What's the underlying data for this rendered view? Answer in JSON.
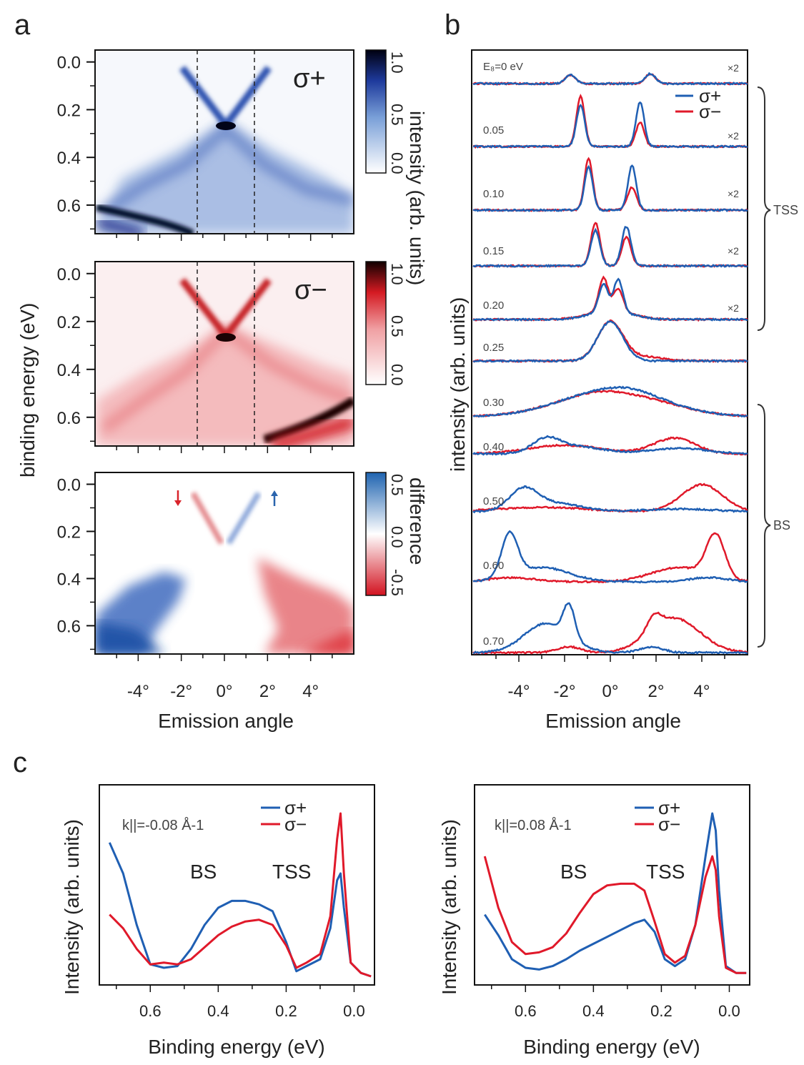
{
  "panel_letters": {
    "a": "a",
    "b": "b",
    "c": "c"
  },
  "panel_a": {
    "ylabel": "binding energy (eV)",
    "xlabel": "Emission angle",
    "y_ticks": [
      "0.0",
      "0.2",
      "0.4",
      "0.6"
    ],
    "x_ticks": [
      "-4°",
      "-2°",
      "0°",
      "2°",
      "4°"
    ],
    "maps": [
      {
        "tag": "σ+",
        "color": "#1f3a9e",
        "colorbar_label": "intensity (arb. units)",
        "colorbar_ticks": [
          "1.0",
          "0.5",
          "0.0"
        ]
      },
      {
        "tag": "σ−",
        "color": "#d41a22",
        "colorbar_ticks": [
          "1.0",
          "0.5",
          "0.0"
        ]
      },
      {
        "colorbar_label": "difference",
        "colorbar_ticks": [
          "0.5",
          "0.0",
          "-0.5"
        ],
        "arrow_down_color": "#d9242b",
        "arrow_up_color": "#2a64ad"
      }
    ]
  },
  "panel_b": {
    "ylabel": "intensity (arb. units)",
    "xlabel": "Emission angle",
    "x_ticks": [
      "-4°",
      "-2°",
      "0°",
      "2°",
      "4°"
    ],
    "legend": [
      {
        "name": "σ+",
        "color": "#1f5fb3"
      },
      {
        "name": "σ−",
        "color": "#e0192a"
      }
    ],
    "brackets": [
      "TSS",
      "BS"
    ],
    "multiplier": "×2",
    "energy_labels": [
      "E₈=0 eV",
      "0.05",
      "0.10",
      "0.15",
      "0.20",
      "0.25",
      "0.30",
      "0.40",
      "0.50",
      "0.60",
      "0.70"
    ]
  },
  "panel_c": [
    {
      "ylabel": "Intensity (arb. units)",
      "xlabel": "Binding energy (eV)",
      "k_label": "k||=-0.08 Å-1",
      "peak_labels": [
        "BS",
        "TSS"
      ],
      "legend": [
        "σ+",
        "σ−"
      ],
      "x_ticks": [
        "0.6",
        "0.4",
        "0.2",
        "0.0"
      ]
    },
    {
      "ylabel": "Intensity (arb. units)",
      "xlabel": "Binding energy (eV)",
      "k_label": "k||=0.08 Å-1",
      "peak_labels": [
        "BS",
        "TSS"
      ],
      "legend": [
        "σ+",
        "σ−"
      ],
      "x_ticks": [
        "0.6",
        "0.4",
        "0.2",
        "0.0"
      ]
    }
  ],
  "chart_data": [
    {
      "type": "heatmap",
      "x_range_deg": [
        -6,
        6
      ],
      "y_range_eV": [
        -0.05,
        0.72
      ],
      "y_reversed": true,
      "maps": [
        "σ+ intensity",
        "σ− intensity",
        "difference"
      ],
      "colorbar_ranges": [
        [
          0,
          1
        ],
        [
          0,
          1
        ],
        [
          -0.5,
          0.5
        ]
      ],
      "dashed_lines_deg": [
        -1.25,
        1.25
      ]
    },
    {
      "type": "line",
      "x_range_deg": [
        -6,
        6
      ],
      "energies_eV": [
        0,
        0.05,
        0.1,
        0.15,
        0.2,
        0.25,
        0.3,
        0.4,
        0.5,
        0.6,
        0.7
      ],
      "scaled_x2": [
        0,
        0.05,
        0.1,
        0.15,
        0.2
      ],
      "groups": {
        "TSS": [
          0.05,
          0.2
        ],
        "BS": [
          0.3,
          0.7
        ]
      }
    },
    {
      "type": "line",
      "x_label": "Binding energy (eV)",
      "x_reversed": true,
      "xlim": [
        0.75,
        -0.06
      ],
      "series": [
        {
          "name": "σ+",
          "color": "#1f5fb3",
          "x": [
            0.72,
            0.68,
            0.64,
            0.6,
            0.56,
            0.52,
            0.48,
            0.44,
            0.4,
            0.36,
            0.32,
            0.28,
            0.24,
            0.2,
            0.17,
            0.14,
            0.1,
            0.07,
            0.05,
            0.04,
            0.03,
            0.01,
            -0.02,
            -0.05
          ],
          "y": [
            0.78,
            0.6,
            0.3,
            0.07,
            0.05,
            0.06,
            0.16,
            0.3,
            0.4,
            0.44,
            0.44,
            0.42,
            0.38,
            0.2,
            0.03,
            0.06,
            0.1,
            0.28,
            0.56,
            0.6,
            0.4,
            0.08,
            0.02,
            0.0
          ]
        },
        {
          "name": "σ−",
          "color": "#e0192a",
          "x": [
            0.72,
            0.68,
            0.64,
            0.6,
            0.56,
            0.52,
            0.48,
            0.44,
            0.4,
            0.36,
            0.32,
            0.28,
            0.24,
            0.2,
            0.17,
            0.14,
            0.1,
            0.07,
            0.05,
            0.04,
            0.03,
            0.01,
            -0.02,
            -0.05
          ],
          "y": [
            0.36,
            0.28,
            0.16,
            0.07,
            0.08,
            0.07,
            0.1,
            0.17,
            0.24,
            0.29,
            0.32,
            0.33,
            0.3,
            0.18,
            0.05,
            0.08,
            0.13,
            0.35,
            0.8,
            0.95,
            0.6,
            0.08,
            0.02,
            0.0
          ]
        }
      ]
    },
    {
      "type": "line",
      "x_label": "Binding energy (eV)",
      "x_reversed": true,
      "xlim": [
        0.75,
        -0.06
      ],
      "series": [
        {
          "name": "σ+",
          "color": "#1f5fb3",
          "x": [
            0.72,
            0.68,
            0.64,
            0.6,
            0.56,
            0.52,
            0.48,
            0.44,
            0.4,
            0.36,
            0.32,
            0.28,
            0.25,
            0.22,
            0.19,
            0.16,
            0.13,
            0.1,
            0.07,
            0.05,
            0.04,
            0.03,
            0.01,
            -0.02,
            -0.05
          ],
          "y": [
            0.36,
            0.24,
            0.1,
            0.05,
            0.04,
            0.06,
            0.1,
            0.15,
            0.19,
            0.23,
            0.27,
            0.31,
            0.33,
            0.26,
            0.1,
            0.06,
            0.1,
            0.3,
            0.7,
            0.95,
            0.85,
            0.5,
            0.06,
            0.02,
            0.02
          ]
        },
        {
          "name": "σ−",
          "color": "#e0192a",
          "x": [
            0.72,
            0.68,
            0.64,
            0.6,
            0.56,
            0.52,
            0.48,
            0.44,
            0.4,
            0.36,
            0.32,
            0.28,
            0.25,
            0.22,
            0.19,
            0.16,
            0.13,
            0.1,
            0.07,
            0.05,
            0.04,
            0.03,
            0.01,
            -0.02,
            -0.05
          ],
          "y": [
            0.7,
            0.4,
            0.2,
            0.13,
            0.14,
            0.17,
            0.25,
            0.37,
            0.48,
            0.53,
            0.54,
            0.54,
            0.5,
            0.32,
            0.13,
            0.08,
            0.12,
            0.3,
            0.58,
            0.7,
            0.62,
            0.35,
            0.05,
            0.02,
            0.02
          ]
        }
      ]
    }
  ]
}
